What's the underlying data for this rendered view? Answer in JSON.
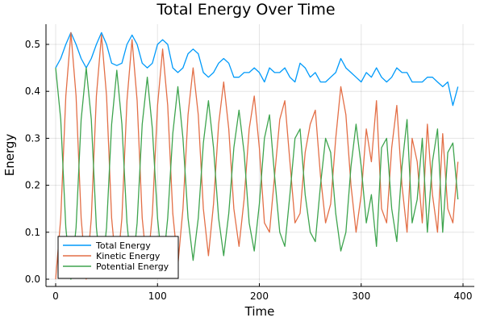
{
  "chart_data": {
    "type": "line",
    "title": "Total Energy Over Time",
    "xlabel": "Time",
    "ylabel": "Energy",
    "xlim": [
      -8,
      410
    ],
    "ylim": [
      -0.015,
      0.545
    ],
    "xticks": [
      0,
      100,
      200,
      300,
      400
    ],
    "xtick_labels": [
      "0",
      "100",
      "200",
      "300",
      "400"
    ],
    "yticks": [
      0.0,
      0.1,
      0.2,
      0.3,
      0.4,
      0.5
    ],
    "ytick_labels": [
      "0.0",
      "0.1",
      "0.2",
      "0.3",
      "0.4",
      "0.5"
    ],
    "grid": true,
    "legend_position": "bottom-left",
    "x": [
      0,
      5,
      10,
      15,
      20,
      25,
      30,
      35,
      40,
      45,
      50,
      55,
      60,
      65,
      70,
      75,
      80,
      85,
      90,
      95,
      100,
      105,
      110,
      115,
      120,
      125,
      130,
      135,
      140,
      145,
      150,
      155,
      160,
      165,
      170,
      175,
      180,
      185,
      190,
      195,
      200,
      205,
      210,
      215,
      220,
      225,
      230,
      235,
      240,
      245,
      250,
      255,
      260,
      265,
      270,
      275,
      280,
      285,
      290,
      295,
      300,
      305,
      310,
      315,
      320,
      325,
      330,
      335,
      340,
      345,
      350,
      355,
      360,
      365,
      370,
      375,
      380,
      385,
      390,
      395
    ],
    "series": [
      {
        "name": "Total Energy",
        "color": "#009AFA",
        "values": [
          0.45,
          0.47,
          0.5,
          0.525,
          0.5,
          0.47,
          0.45,
          0.47,
          0.5,
          0.525,
          0.5,
          0.46,
          0.455,
          0.46,
          0.5,
          0.52,
          0.5,
          0.46,
          0.45,
          0.46,
          0.5,
          0.51,
          0.5,
          0.45,
          0.44,
          0.45,
          0.48,
          0.49,
          0.48,
          0.44,
          0.43,
          0.44,
          0.46,
          0.47,
          0.46,
          0.43,
          0.43,
          0.44,
          0.44,
          0.45,
          0.44,
          0.42,
          0.45,
          0.44,
          0.44,
          0.45,
          0.43,
          0.42,
          0.46,
          0.45,
          0.43,
          0.44,
          0.42,
          0.42,
          0.43,
          0.44,
          0.47,
          0.45,
          0.44,
          0.43,
          0.42,
          0.44,
          0.43,
          0.45,
          0.43,
          0.42,
          0.43,
          0.45,
          0.44,
          0.44,
          0.42,
          0.42,
          0.42,
          0.43,
          0.43,
          0.42,
          0.41,
          0.42,
          0.37,
          0.41
        ]
      },
      {
        "name": "Kinetic Energy",
        "color": "#E36F47",
        "values": [
          0.0,
          0.13,
          0.39,
          0.525,
          0.39,
          0.13,
          0.0,
          0.13,
          0.39,
          0.52,
          0.39,
          0.13,
          0.01,
          0.13,
          0.38,
          0.51,
          0.38,
          0.13,
          0.02,
          0.14,
          0.37,
          0.49,
          0.37,
          0.14,
          0.03,
          0.15,
          0.35,
          0.45,
          0.35,
          0.15,
          0.05,
          0.16,
          0.33,
          0.42,
          0.32,
          0.15,
          0.07,
          0.17,
          0.32,
          0.39,
          0.28,
          0.12,
          0.1,
          0.22,
          0.34,
          0.38,
          0.25,
          0.12,
          0.14,
          0.27,
          0.33,
          0.36,
          0.22,
          0.12,
          0.16,
          0.3,
          0.41,
          0.35,
          0.2,
          0.1,
          0.18,
          0.32,
          0.25,
          0.38,
          0.15,
          0.12,
          0.28,
          0.37,
          0.2,
          0.1,
          0.3,
          0.25,
          0.12,
          0.33,
          0.18,
          0.1,
          0.31,
          0.15,
          0.12,
          0.25
        ]
      },
      {
        "name": "Potential Energy",
        "color": "#3EA44E",
        "values": [
          0.45,
          0.34,
          0.11,
          0.0,
          0.11,
          0.34,
          0.45,
          0.34,
          0.11,
          0.005,
          0.11,
          0.33,
          0.445,
          0.33,
          0.12,
          0.01,
          0.12,
          0.33,
          0.43,
          0.32,
          0.13,
          0.02,
          0.13,
          0.31,
          0.41,
          0.3,
          0.13,
          0.04,
          0.13,
          0.29,
          0.38,
          0.28,
          0.13,
          0.05,
          0.14,
          0.28,
          0.36,
          0.27,
          0.12,
          0.06,
          0.16,
          0.3,
          0.35,
          0.22,
          0.1,
          0.07,
          0.18,
          0.3,
          0.32,
          0.18,
          0.1,
          0.08,
          0.2,
          0.3,
          0.27,
          0.14,
          0.06,
          0.1,
          0.24,
          0.33,
          0.24,
          0.12,
          0.18,
          0.07,
          0.28,
          0.3,
          0.15,
          0.08,
          0.24,
          0.34,
          0.12,
          0.17,
          0.3,
          0.1,
          0.25,
          0.32,
          0.1,
          0.27,
          0.29,
          0.17
        ]
      }
    ]
  }
}
